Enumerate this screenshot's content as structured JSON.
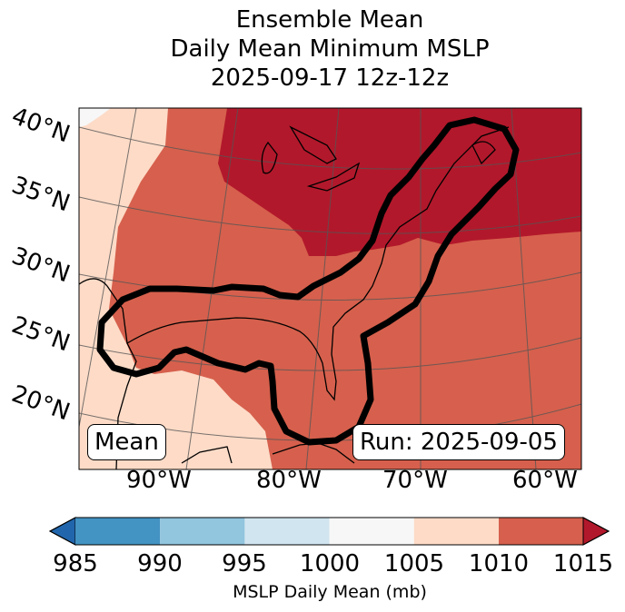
{
  "title": {
    "line1": "Ensemble Mean",
    "line2": "Daily Mean Minimum MSLP",
    "line3": "2025-09-17 12z-12z"
  },
  "map": {
    "lat_labels": [
      "40°N",
      "35°N",
      "30°N",
      "25°N",
      "20°N"
    ],
    "lon_labels": [
      "90°W",
      "80°W",
      "70°W",
      "60°W"
    ],
    "left_box": "Mean",
    "right_box": "Run: 2025-09-05"
  },
  "colorbar": {
    "ticks": [
      "985",
      "990",
      "995",
      "1000",
      "1005",
      "1010",
      "1015"
    ],
    "label": "MSLP Daily Mean (mb)",
    "colors": {
      "under": "#2166ac",
      "985-990": "#4393c3",
      "990-995": "#92c5de",
      "995-1000": "#d1e5f0",
      "1000-1005": "#f7f7f7",
      "1005-1010": "#fddbc7",
      "1010-1015": "#d6604d",
      "over": "#b2182b"
    }
  }
}
